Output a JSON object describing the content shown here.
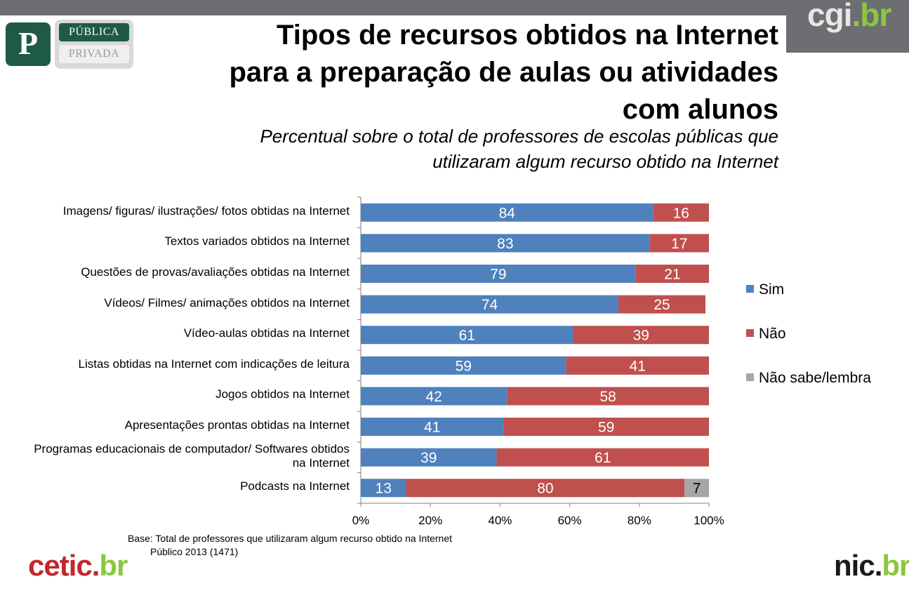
{
  "header": {
    "badge_letter": "P",
    "tag_active": "PÚBLICA",
    "tag_inactive": "PRIVADA",
    "title_line1": "Tipos de recursos obtidos na Internet",
    "title_line2": "para a preparação  de aulas ou atividades",
    "title_line3": "com alunos",
    "subtitle_line1": "Percentual sobre o total de professores de escolas públicas que",
    "subtitle_line2": "utilizaram algum recurso obtido na Internet"
  },
  "logos": {
    "cgi_main": "cgi",
    "cgi_dot": ".",
    "cgi_br": "br",
    "cetic_main": "cetic",
    "cetic_dot": ".",
    "cetic_br": "br",
    "nic_main": "nic",
    "nic_dot": ".",
    "nic_br": "br"
  },
  "note": {
    "line1": "Base: Total de professores que utilizaram algum recurso obtido na Internet",
    "line2": "Público  2013 (1471)"
  },
  "colors": {
    "sim": "#4f81bd",
    "nao": "#c0504d",
    "naosabe": "#a6a6a6",
    "brand_green": "#1e5a45",
    "accent_green": "#8dc63f"
  },
  "chart_data": {
    "type": "bar",
    "orientation": "horizontal",
    "stacked": "percent",
    "categories": [
      "Imagens/ figuras/ ilustrações/ fotos obtidas na Internet",
      "Textos variados obtidos na Internet",
      "Questões de provas/avaliações obtidas na Internet",
      "Vídeos/ Filmes/ animações obtidos na Internet",
      "Vídeo-aulas obtidas na Internet",
      "Listas obtidas na Internet com indicações de leitura",
      "Jogos obtidos na Internet",
      "Apresentações prontas obtidas na Internet",
      "Programas educacionais de computador/ Softwares obtidos na Internet",
      "Podcasts na Internet"
    ],
    "category_lines": [
      [
        "Imagens/ figuras/ ilustrações/ fotos obtidas na Internet"
      ],
      [
        "Textos variados obtidos na Internet"
      ],
      [
        "Questões de provas/avaliações obtidas na Internet"
      ],
      [
        "Vídeos/ Filmes/ animações obtidos na Internet"
      ],
      [
        "Vídeo-aulas obtidas na Internet"
      ],
      [
        "Listas obtidas na Internet com indicações de leitura"
      ],
      [
        "Jogos obtidos na Internet"
      ],
      [
        "Apresentações prontas obtidas na Internet"
      ],
      [
        "Programas educacionais de computador/ Softwares obtidos",
        "na Internet"
      ],
      [
        "Podcasts na Internet"
      ]
    ],
    "series": [
      {
        "name": "Sim",
        "color": "#4f81bd",
        "values": [
          84,
          83,
          79,
          74,
          61,
          59,
          42,
          41,
          39,
          13
        ]
      },
      {
        "name": "Não",
        "color": "#c0504d",
        "values": [
          16,
          17,
          21,
          25,
          39,
          41,
          58,
          59,
          61,
          80
        ]
      },
      {
        "name": "Não sabe/lembra",
        "color": "#a6a6a6",
        "values": [
          0,
          0,
          0,
          0,
          0,
          0,
          0,
          0,
          0,
          7
        ]
      }
    ],
    "xlim": [
      0,
      100
    ],
    "xticks": [
      "0%",
      "20%",
      "40%",
      "60%",
      "80%",
      "100%"
    ],
    "xtick_values": [
      0,
      20,
      40,
      60,
      80,
      100
    ],
    "grid": false,
    "legend_position": "right",
    "data_labels": true
  }
}
